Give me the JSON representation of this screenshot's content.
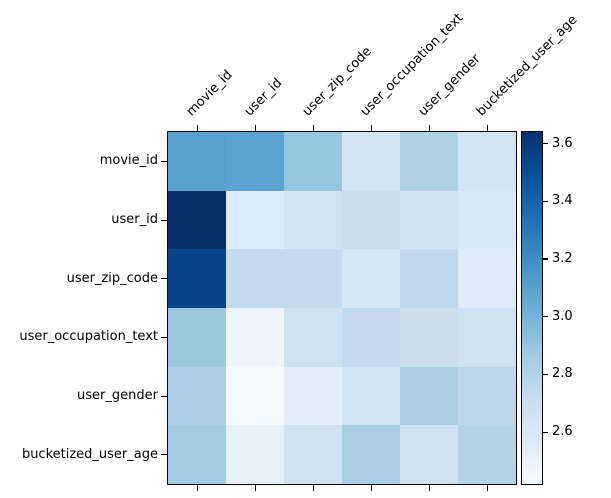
{
  "figure": {
    "background": "#ffffff",
    "axes_border_color": "#000000",
    "tick_color": "#000000",
    "text_color": "#000000"
  },
  "chart_data": {
    "type": "heatmap",
    "title": "",
    "xlabel": "",
    "ylabel": "",
    "grid": false,
    "x_tick_rotation": 45,
    "x_categories": [
      "movie_id",
      "user_id",
      "user_zip_code",
      "user_occupation_text",
      "user_gender",
      "bucketized_user_age"
    ],
    "y_categories": [
      "movie_id",
      "user_id",
      "user_zip_code",
      "user_occupation_text",
      "user_gender",
      "bucketized_user_age"
    ],
    "values": [
      [
        3.1,
        3.09,
        2.9,
        2.64,
        2.81,
        2.64
      ],
      [
        3.64,
        2.58,
        2.65,
        2.69,
        2.66,
        2.6
      ],
      [
        3.55,
        2.73,
        2.73,
        2.62,
        2.75,
        2.57
      ],
      [
        2.89,
        2.47,
        2.67,
        2.74,
        2.7,
        2.67
      ],
      [
        2.82,
        2.42,
        2.54,
        2.65,
        2.83,
        2.76
      ],
      [
        2.87,
        2.52,
        2.66,
        2.83,
        2.66,
        2.79
      ]
    ],
    "colormap": {
      "name": "Blues",
      "anchors": [
        "#f7fbff",
        "#deebf7",
        "#c6dbef",
        "#9ecae1",
        "#6baed6",
        "#4292c6",
        "#2171b5",
        "#08519c",
        "#08306b"
      ]
    },
    "colorbar": {
      "position": "right",
      "vmin": 2.42,
      "vmax": 3.64,
      "ticks": [
        2.6,
        2.8,
        3.0,
        3.2,
        3.4,
        3.6
      ],
      "tick_labels": [
        "2.6",
        "2.8",
        "3.0",
        "3.2",
        "3.4",
        "3.6"
      ]
    }
  }
}
